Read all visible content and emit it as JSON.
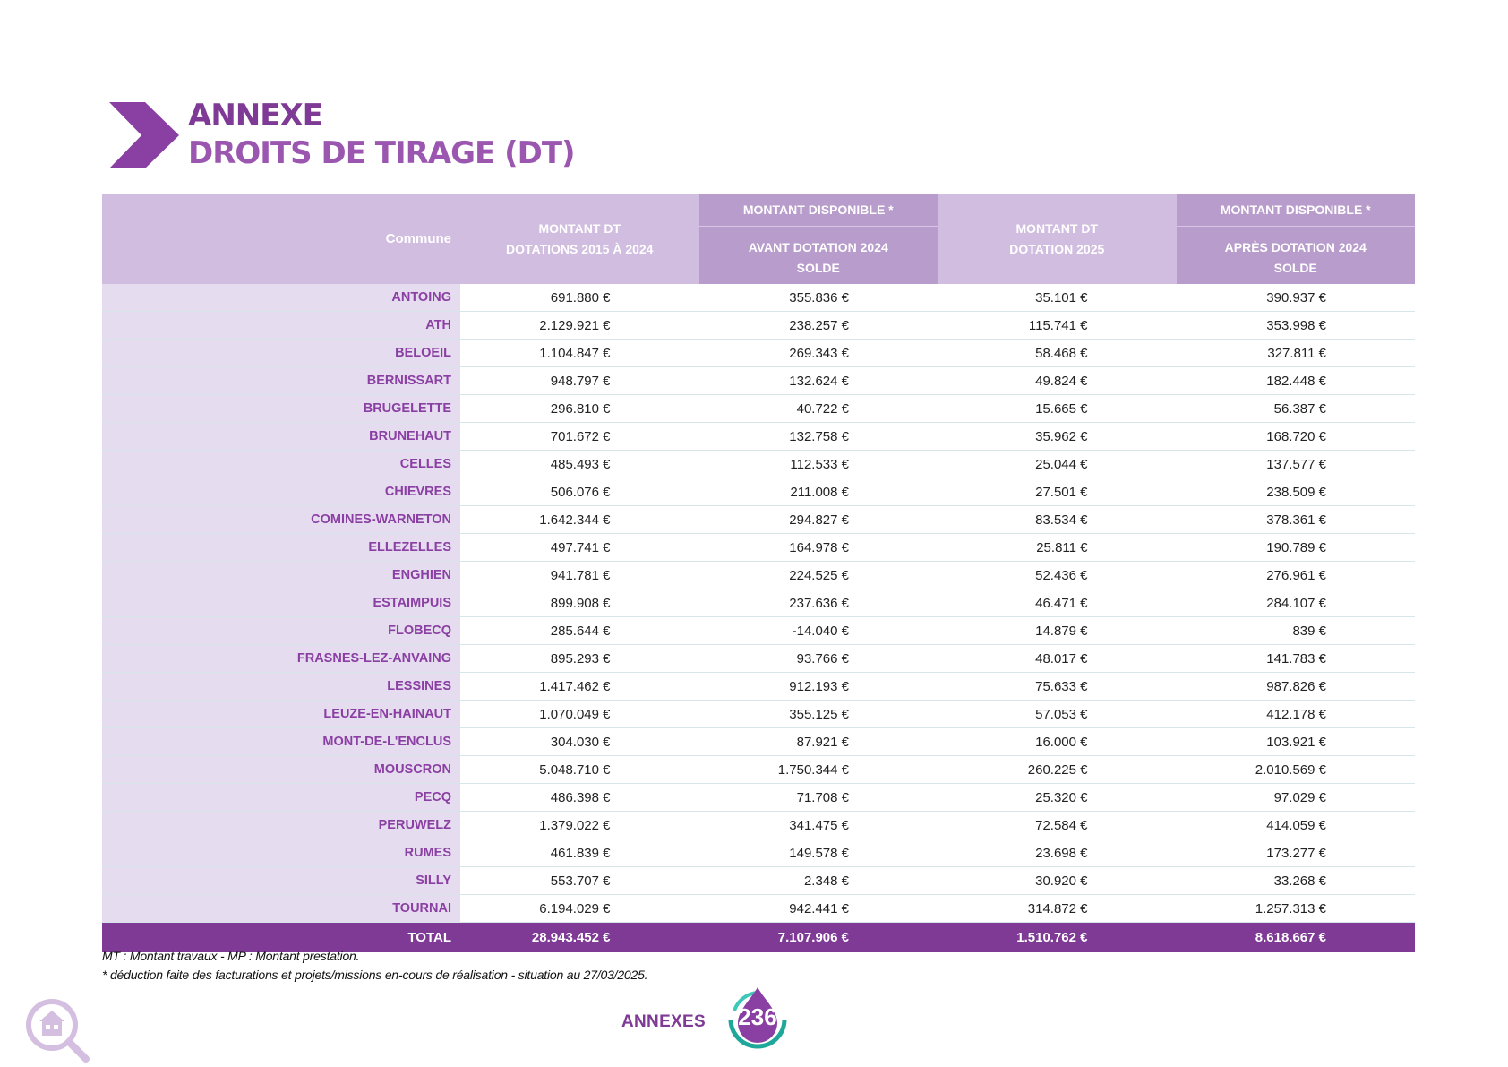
{
  "header": {
    "line1": "ANNEXE",
    "line2": "DROITS DE TIRAGE (DT)"
  },
  "table": {
    "header": {
      "commune": "Commune",
      "col1": [
        "MONTANT DT",
        "DOTATIONS 2015 À 2024"
      ],
      "col2_top": "MONTANT DISPONIBLE *",
      "col2": [
        "AVANT DOTATION 2024",
        "SOLDE"
      ],
      "col3": [
        "MONTANT DT",
        "DOTATION 2025"
      ],
      "col4_top": "MONTANT DISPONIBLE *",
      "col4": [
        "APRÈS DOTATION 2024",
        "SOLDE"
      ]
    },
    "rows": [
      {
        "name": "ANTOING",
        "v": [
          "691.880 €",
          "355.836 €",
          "35.101 €",
          "390.937 €"
        ]
      },
      {
        "name": "ATH",
        "v": [
          "2.129.921 €",
          "238.257 €",
          "115.741 €",
          "353.998 €"
        ]
      },
      {
        "name": "BELOEIL",
        "v": [
          "1.104.847 €",
          "269.343 €",
          "58.468 €",
          "327.811 €"
        ]
      },
      {
        "name": "BERNISSART",
        "v": [
          "948.797 €",
          "132.624 €",
          "49.824 €",
          "182.448 €"
        ]
      },
      {
        "name": "BRUGELETTE",
        "v": [
          "296.810 €",
          "40.722 €",
          "15.665 €",
          "56.387 €"
        ]
      },
      {
        "name": "BRUNEHAUT",
        "v": [
          "701.672 €",
          "132.758 €",
          "35.962 €",
          "168.720 €"
        ]
      },
      {
        "name": "CELLES",
        "v": [
          "485.493 €",
          "112.533 €",
          "25.044 €",
          "137.577 €"
        ]
      },
      {
        "name": "CHIEVRES",
        "v": [
          "506.076 €",
          "211.008 €",
          "27.501 €",
          "238.509 €"
        ]
      },
      {
        "name": "COMINES-WARNETON",
        "v": [
          "1.642.344 €",
          "294.827 €",
          "83.534 €",
          "378.361 €"
        ]
      },
      {
        "name": "ELLEZELLES",
        "v": [
          "497.741 €",
          "164.978 €",
          "25.811 €",
          "190.789 €"
        ]
      },
      {
        "name": "ENGHIEN",
        "v": [
          "941.781 €",
          "224.525 €",
          "52.436 €",
          "276.961 €"
        ]
      },
      {
        "name": "ESTAIMPUIS",
        "v": [
          "899.908 €",
          "237.636 €",
          "46.471 €",
          "284.107 €"
        ]
      },
      {
        "name": "FLOBECQ",
        "v": [
          "285.644 €",
          "-14.040 €",
          "14.879 €",
          "839 €"
        ]
      },
      {
        "name": "FRASNES-LEZ-ANVAING",
        "v": [
          "895.293 €",
          "93.766 €",
          "48.017 €",
          "141.783 €"
        ]
      },
      {
        "name": "LESSINES",
        "v": [
          "1.417.462 €",
          "912.193 €",
          "75.633 €",
          "987.826 €"
        ]
      },
      {
        "name": "LEUZE-EN-HAINAUT",
        "v": [
          "1.070.049 €",
          "355.125 €",
          "57.053 €",
          "412.178 €"
        ]
      },
      {
        "name": "MONT-DE-L'ENCLUS",
        "v": [
          "304.030 €",
          "87.921 €",
          "16.000 €",
          "103.921 €"
        ]
      },
      {
        "name": "MOUSCRON",
        "v": [
          "5.048.710 €",
          "1.750.344 €",
          "260.225 €",
          "2.010.569 €"
        ]
      },
      {
        "name": "PECQ",
        "v": [
          "486.398 €",
          "71.708 €",
          "25.320 €",
          "97.029 €"
        ]
      },
      {
        "name": "PERUWELZ",
        "v": [
          "1.379.022 €",
          "341.475 €",
          "72.584 €",
          "414.059 €"
        ]
      },
      {
        "name": "RUMES",
        "v": [
          "461.839 €",
          "149.578 €",
          "23.698 €",
          "173.277 €"
        ]
      },
      {
        "name": "SILLY",
        "v": [
          "553.707 €",
          "2.348 €",
          "30.920 €",
          "33.268 €"
        ]
      },
      {
        "name": "TOURNAI",
        "v": [
          "6.194.029 €",
          "942.441 €",
          "314.872 €",
          "1.257.313 €"
        ]
      }
    ],
    "total": {
      "name": "TOTAL",
      "v": [
        "28.943.452 €",
        "7.107.906 €",
        "1.510.762 €",
        "8.618.667 €"
      ]
    }
  },
  "notes": [
    "MT : Montant travaux - MP : Montant prestation.",
    "* déduction faite des facturations et projets/missions en-cours de réalisation - situation au 27/03/2025."
  ],
  "footer": {
    "section": "ANNEXES",
    "page": "236"
  },
  "colors": {
    "purple": "#7e3a95",
    "header_light": "#d0bde0",
    "header_dark": "#b89ccb",
    "name_cell": "#e6dcef",
    "badge_teal": "#1fa89a"
  },
  "icons": {
    "title_marker": "chevron-right-icon",
    "corner": "home-search-icon",
    "page_badge": "droplet-cycle-icon"
  }
}
